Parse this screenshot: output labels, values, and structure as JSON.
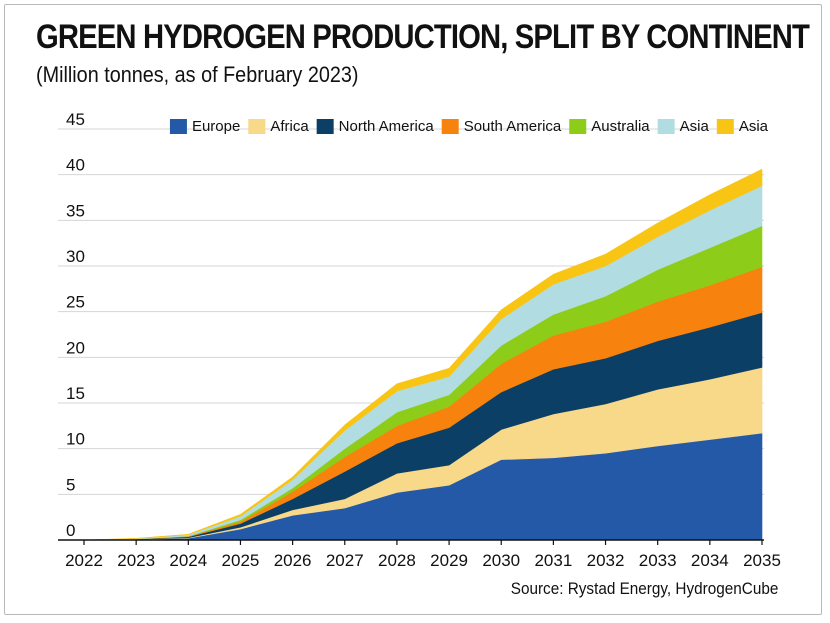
{
  "title": "GREEN HYDROGEN PRODUCTION, SPLIT BY CONTINENT",
  "subtitle": "(Million tonnes, as of February 2023)",
  "source": "Source: Rystad Energy, HydrogenCube",
  "chart_data": {
    "type": "area",
    "stacked": true,
    "x": [
      "2022",
      "2023",
      "2024",
      "2025",
      "2026",
      "2027",
      "2028",
      "2029",
      "2030",
      "2031",
      "2032",
      "2033",
      "2034",
      "2035"
    ],
    "ylim": [
      0,
      45
    ],
    "yticks": [
      0,
      5,
      10,
      15,
      20,
      25,
      30,
      35,
      40,
      45
    ],
    "grid": true,
    "legend_position": "top-right",
    "series": [
      {
        "name": "Europe",
        "color": "#2459a8",
        "values": [
          0,
          0.05,
          0.2,
          1.2,
          2.7,
          3.5,
          5.2,
          6.0,
          8.8,
          9.0,
          9.5,
          10.3,
          11.0,
          11.7
        ]
      },
      {
        "name": "Africa",
        "color": "#f8d889",
        "values": [
          0,
          0.02,
          0.05,
          0.2,
          0.6,
          1.0,
          2.1,
          2.2,
          3.3,
          4.8,
          5.4,
          6.2,
          6.6,
          7.2
        ]
      },
      {
        "name": "North America",
        "color": "#0b3f66",
        "values": [
          0,
          0.02,
          0.1,
          0.4,
          1.2,
          3.0,
          3.3,
          4.1,
          4.1,
          4.9,
          5.0,
          5.3,
          5.7,
          6.0
        ]
      },
      {
        "name": "South America",
        "color": "#f7820e",
        "values": [
          0,
          0.01,
          0.05,
          0.2,
          0.8,
          1.6,
          1.9,
          2.3,
          3.1,
          3.7,
          4.0,
          4.3,
          4.6,
          5.0
        ]
      },
      {
        "name": "Australia",
        "color": "#8dcd1a",
        "values": [
          0,
          0.01,
          0.03,
          0.2,
          0.4,
          0.9,
          1.5,
          1.3,
          2.0,
          2.3,
          2.8,
          3.5,
          4.1,
          4.5
        ]
      },
      {
        "name": "Asia",
        "color": "#b1dde2",
        "values": [
          0,
          0.05,
          0.15,
          0.4,
          0.9,
          2.0,
          2.3,
          2.0,
          2.9,
          3.3,
          3.3,
          3.6,
          4.1,
          4.4
        ]
      },
      {
        "name": "Asia",
        "color": "#f9c515",
        "values": [
          0,
          0.03,
          0.05,
          0.2,
          0.3,
          0.6,
          0.8,
          0.9,
          1.0,
          1.1,
          1.3,
          1.5,
          1.7,
          1.8
        ]
      }
    ]
  }
}
